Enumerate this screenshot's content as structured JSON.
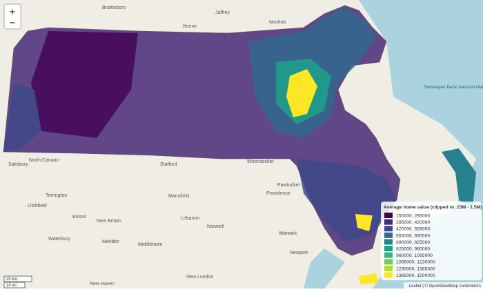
{
  "map": {
    "zoom_in": "+",
    "zoom_out": "−",
    "places": [
      "Brattleboro",
      "Keene",
      "Jaffrey",
      "Nashua",
      "North Canaan",
      "Salisbury",
      "Torrington",
      "Litchfield",
      "Bristol",
      "New Britain",
      "Waterbury",
      "Meriden",
      "Middletown",
      "New Haven",
      "Stafford",
      "Mansfield",
      "Lebanon",
      "Norwich",
      "New London",
      "Woonsocket",
      "Pawtucket",
      "Providence",
      "Warwick",
      "Newport",
      "Stellwagen Bank National Marine Sanctuary"
    ],
    "scale": [
      "20 km",
      "10 mi"
    ],
    "attribution": "Leaflet | © OpenStreetMap contributors"
  },
  "legend": {
    "title": "Average home value (clipped to .15M - 1.5M)",
    "items": [
      {
        "label": "150000, 285000",
        "color": "#440154"
      },
      {
        "label": "285000, 420000",
        "color": "#482878"
      },
      {
        "label": "420000, 555000",
        "color": "#3e4989"
      },
      {
        "label": "555000, 690000",
        "color": "#31688e"
      },
      {
        "label": "690000, 825000",
        "color": "#26828e"
      },
      {
        "label": "825000, 960000",
        "color": "#1f9e89"
      },
      {
        "label": "960000, 1095000",
        "color": "#35b779"
      },
      {
        "label": "1095000, 1230000",
        "color": "#6ece58"
      },
      {
        "label": "1230000, 1365000",
        "color": "#b5de2b"
      },
      {
        "label": "1365000, 1500000",
        "color": "#fde725"
      }
    ]
  }
}
